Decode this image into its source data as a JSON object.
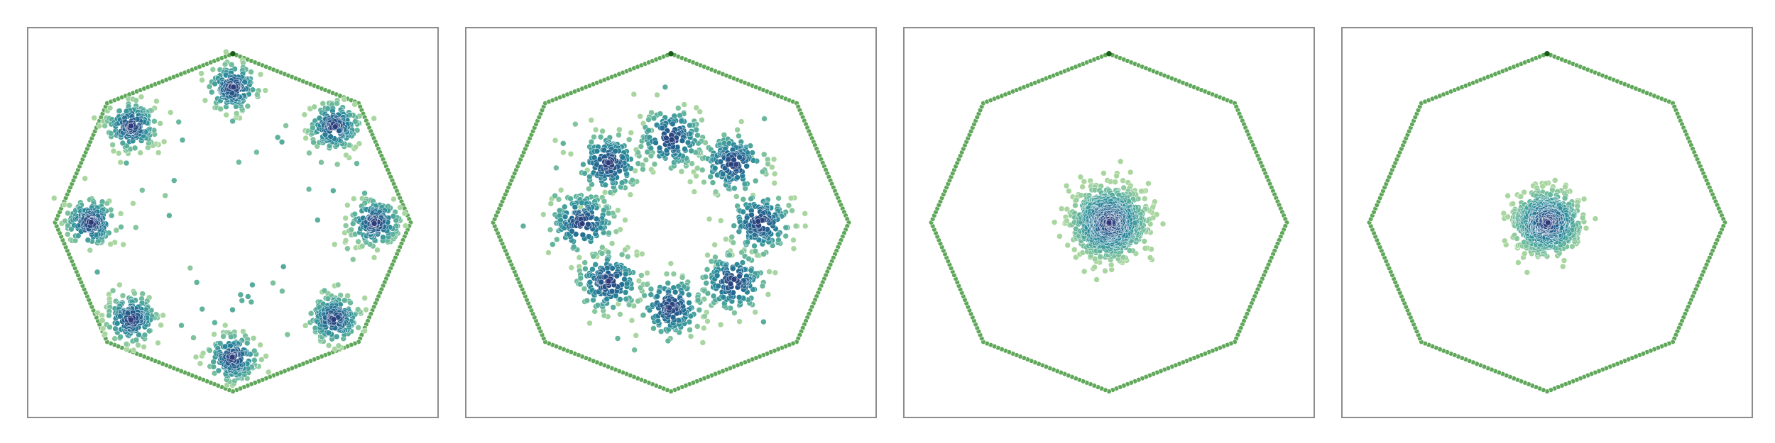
{
  "chart_data": [
    {
      "type": "scatter",
      "title": "",
      "xlabel": "",
      "ylabel": "",
      "grid": false,
      "xlim": [
        -1.15,
        1.15
      ],
      "ylim": [
        -1.15,
        1.15
      ],
      "boundary": {
        "shape": "octagon",
        "radius": 1.0,
        "color": "#5fa85a",
        "top_vertex_color": "#1a5c1a"
      },
      "clusters": [
        {
          "center": [
            0.0,
            0.8
          ],
          "spread": 0.07,
          "count": 180
        },
        {
          "center": [
            0.57,
            0.57
          ],
          "spread": 0.07,
          "count": 180
        },
        {
          "center": [
            0.8,
            0.0
          ],
          "spread": 0.07,
          "count": 180
        },
        {
          "center": [
            0.57,
            -0.57
          ],
          "spread": 0.07,
          "count": 180
        },
        {
          "center": [
            0.0,
            -0.8
          ],
          "spread": 0.07,
          "count": 180
        },
        {
          "center": [
            -0.57,
            -0.57
          ],
          "spread": 0.07,
          "count": 180
        },
        {
          "center": [
            -0.8,
            0.0
          ],
          "spread": 0.07,
          "count": 180
        },
        {
          "center": [
            -0.57,
            0.57
          ],
          "spread": 0.07,
          "count": 180
        }
      ],
      "scattered_count": 60,
      "colormap": [
        "#a9d6a0",
        "#63b59c",
        "#2b8c9b",
        "#235f8e",
        "#2f3677"
      ]
    },
    {
      "type": "scatter",
      "title": "",
      "xlabel": "",
      "ylabel": "",
      "grid": false,
      "xlim": [
        -1.15,
        1.15
      ],
      "ylim": [
        -1.15,
        1.15
      ],
      "boundary": {
        "shape": "octagon",
        "radius": 1.0,
        "color": "#5fa85a",
        "top_vertex_color": "#1a5c1a"
      },
      "clusters": [
        {
          "center": [
            0.0,
            0.5
          ],
          "spread": 0.09,
          "count": 160
        },
        {
          "center": [
            0.35,
            0.35
          ],
          "spread": 0.09,
          "count": 160
        },
        {
          "center": [
            0.5,
            0.0
          ],
          "spread": 0.09,
          "count": 160
        },
        {
          "center": [
            0.35,
            -0.35
          ],
          "spread": 0.09,
          "count": 160
        },
        {
          "center": [
            0.0,
            -0.5
          ],
          "spread": 0.09,
          "count": 160
        },
        {
          "center": [
            -0.35,
            -0.35
          ],
          "spread": 0.09,
          "count": 160
        },
        {
          "center": [
            -0.5,
            0.0
          ],
          "spread": 0.09,
          "count": 160
        },
        {
          "center": [
            -0.35,
            0.35
          ],
          "spread": 0.09,
          "count": 160
        }
      ],
      "scattered_count": 40,
      "colormap": [
        "#a9d6a0",
        "#63b59c",
        "#2b8c9b",
        "#235f8e",
        "#2f3677"
      ]
    },
    {
      "type": "scatter",
      "title": "",
      "xlabel": "",
      "ylabel": "",
      "grid": false,
      "xlim": [
        -1.15,
        1.15
      ],
      "ylim": [
        -1.15,
        1.15
      ],
      "boundary": {
        "shape": "octagon",
        "radius": 1.0,
        "color": "#5fa85a",
        "top_vertex_color": "#1a5c1a"
      },
      "clusters": [
        {
          "center": [
            0.0,
            0.0
          ],
          "spread": 0.1,
          "count": 900
        }
      ],
      "scattered_count": 0,
      "colormap": [
        "#a9d6a0",
        "#63b59c",
        "#2b8c9b",
        "#235f8e",
        "#2f3677"
      ]
    },
    {
      "type": "scatter",
      "title": "",
      "xlabel": "",
      "ylabel": "",
      "grid": false,
      "xlim": [
        -1.15,
        1.15
      ],
      "ylim": [
        -1.15,
        1.15
      ],
      "boundary": {
        "shape": "octagon",
        "radius": 1.0,
        "color": "#5fa85a",
        "top_vertex_color": "#1a5c1a"
      },
      "clusters": [
        {
          "center": [
            0.0,
            0.0
          ],
          "spread": 0.09,
          "count": 700
        }
      ],
      "scattered_count": 0,
      "colormap": [
        "#a9d6a0",
        "#63b59c",
        "#2b8c9b",
        "#235f8e",
        "#2f3677"
      ]
    }
  ]
}
